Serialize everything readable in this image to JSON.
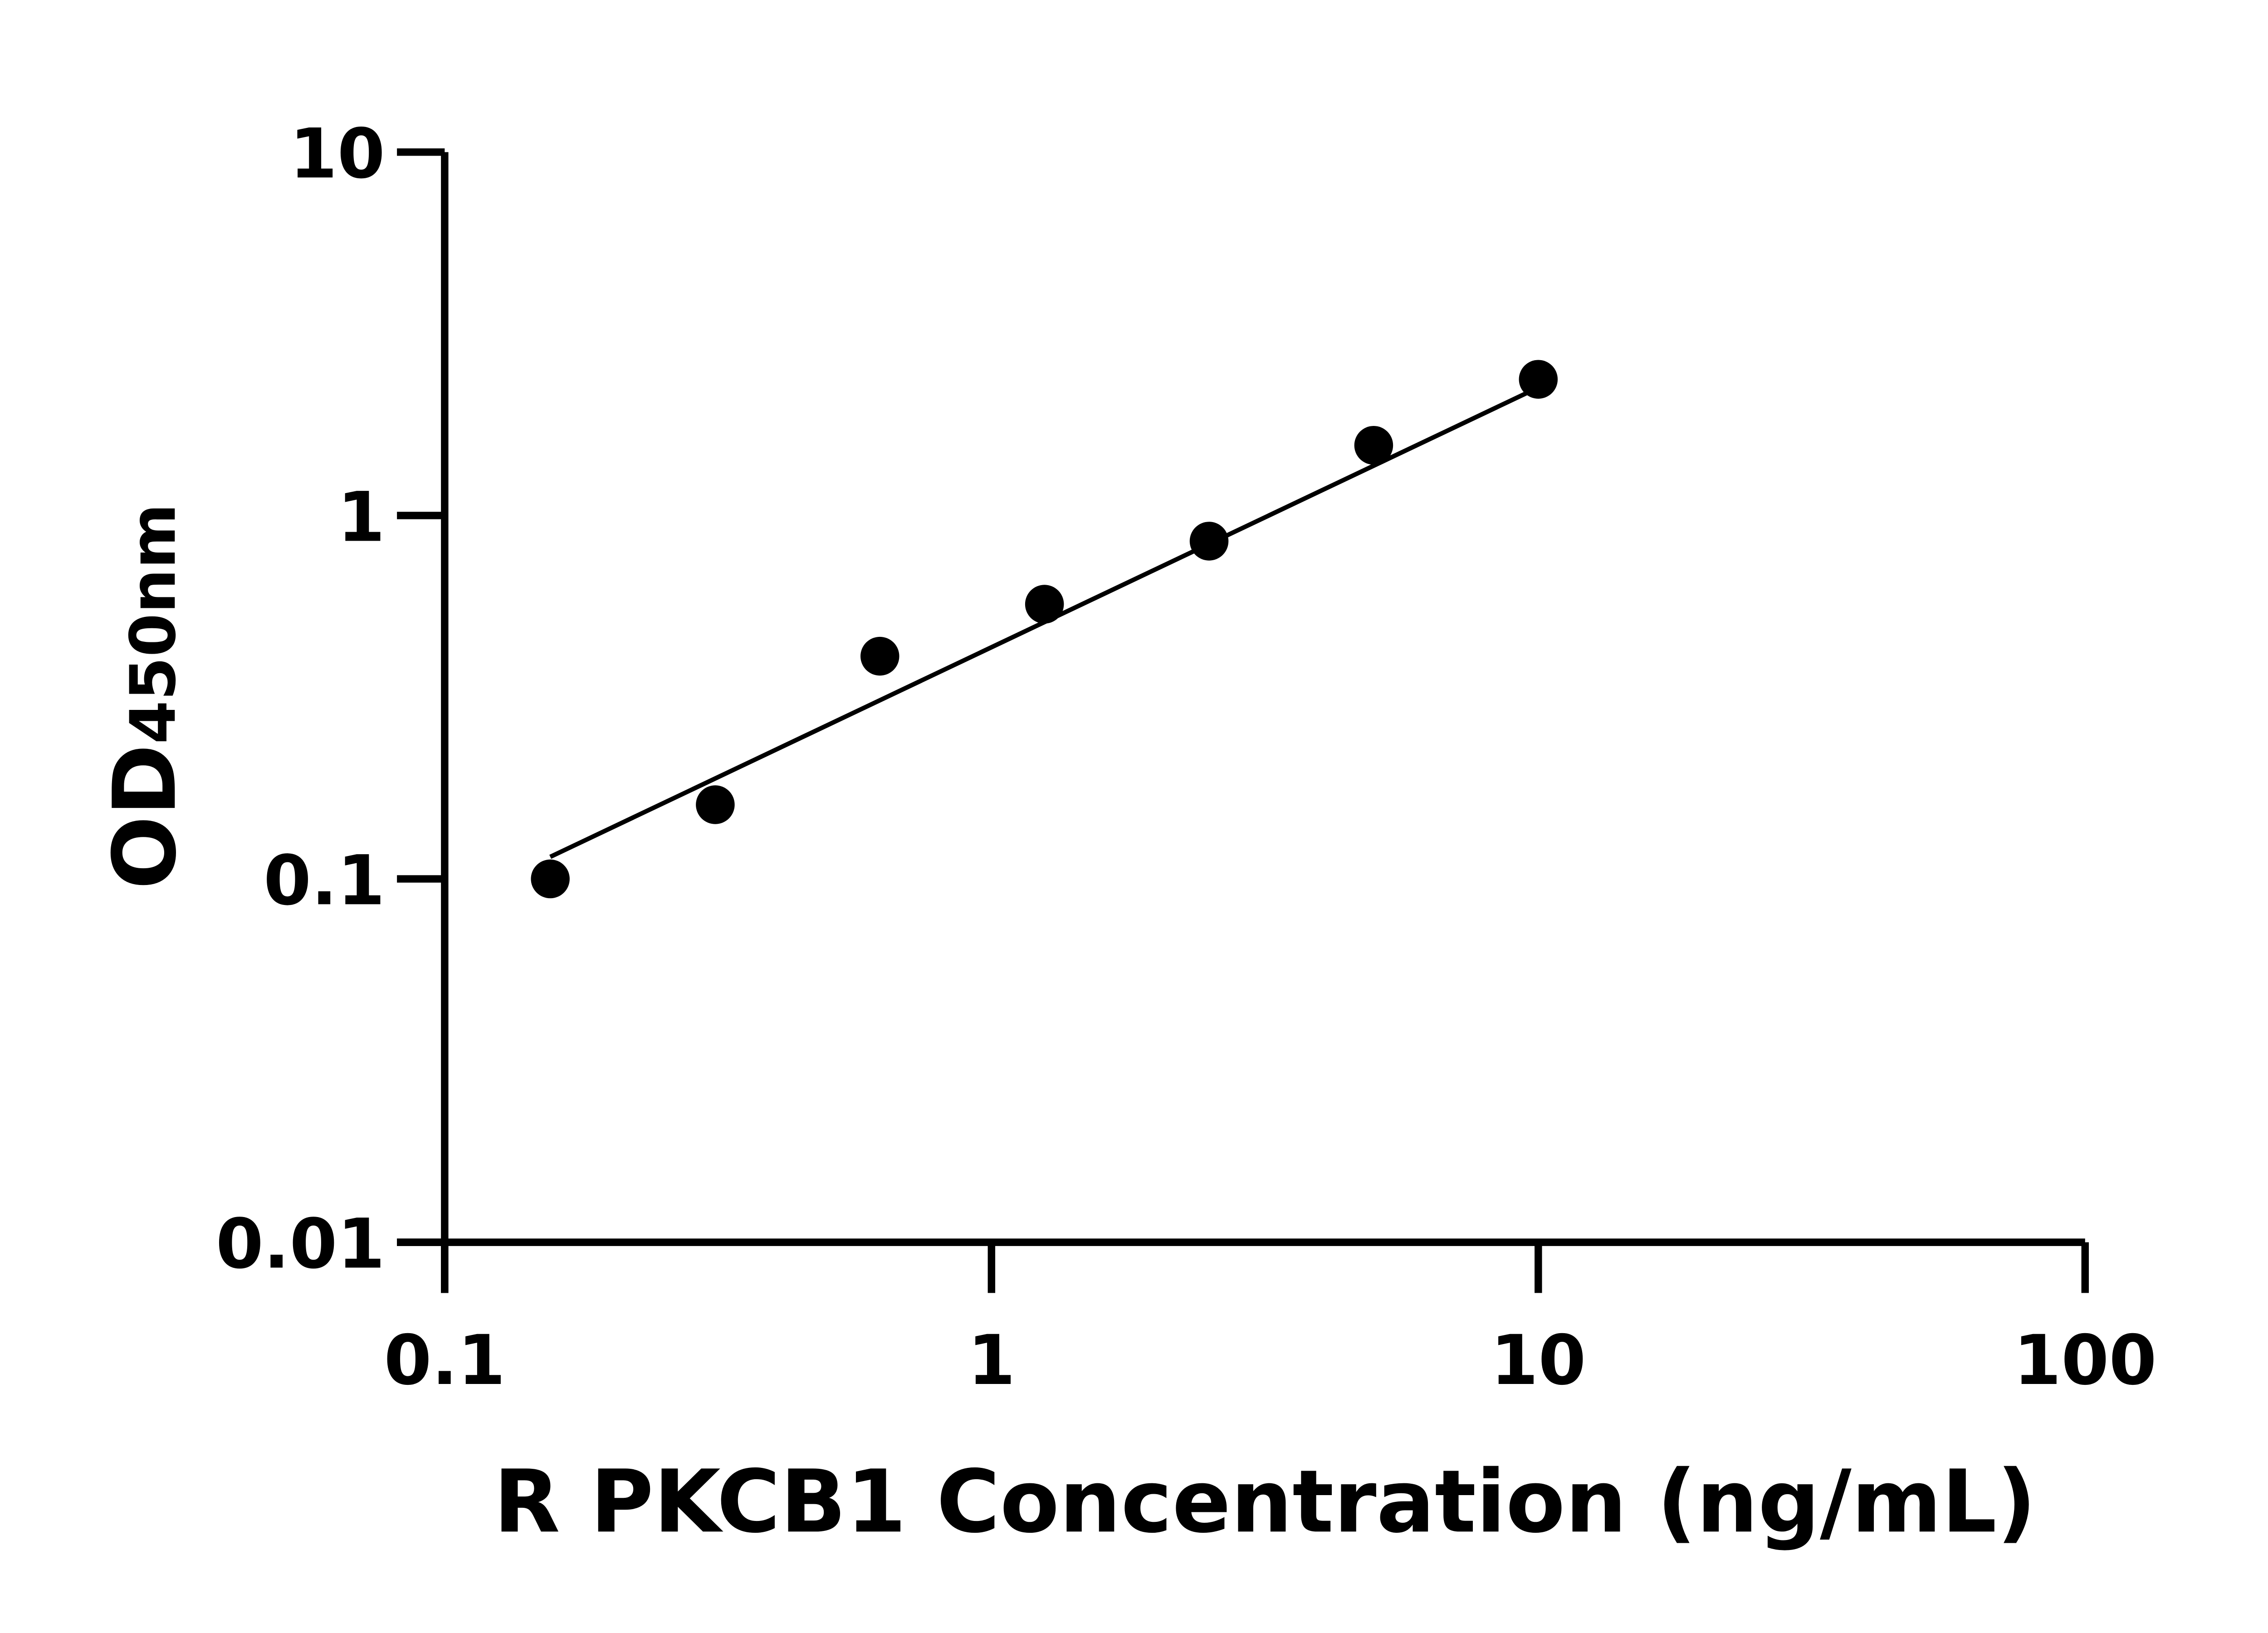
{
  "chart_data": {
    "type": "scatter",
    "title": "",
    "xlabel": "R PKCB1 Concentration (ng/mL)",
    "ylabel_main": "OD",
    "ylabel_sub": "450nm",
    "x_scale": "log",
    "y_scale": "log",
    "xlim": [
      0.1,
      100
    ],
    "ylim": [
      0.01,
      10
    ],
    "x_ticks": [
      0.1,
      1,
      10,
      100
    ],
    "x_tick_labels": [
      "0.1",
      "1",
      "10",
      "100"
    ],
    "y_ticks": [
      0.01,
      0.1,
      1,
      10
    ],
    "y_tick_labels": [
      "0.01",
      "0.1",
      "1",
      "10"
    ],
    "grid": false,
    "legend": "none",
    "points": {
      "x": [
        0.156,
        0.3125,
        0.625,
        1.25,
        2.5,
        5,
        10
      ],
      "y": [
        0.1,
        0.16,
        0.41,
        0.57,
        0.85,
        1.56,
        2.37
      ]
    },
    "fit_line": {
      "x": [
        0.156,
        10
      ],
      "y": [
        0.115,
        2.25
      ]
    },
    "color": "#000000"
  }
}
